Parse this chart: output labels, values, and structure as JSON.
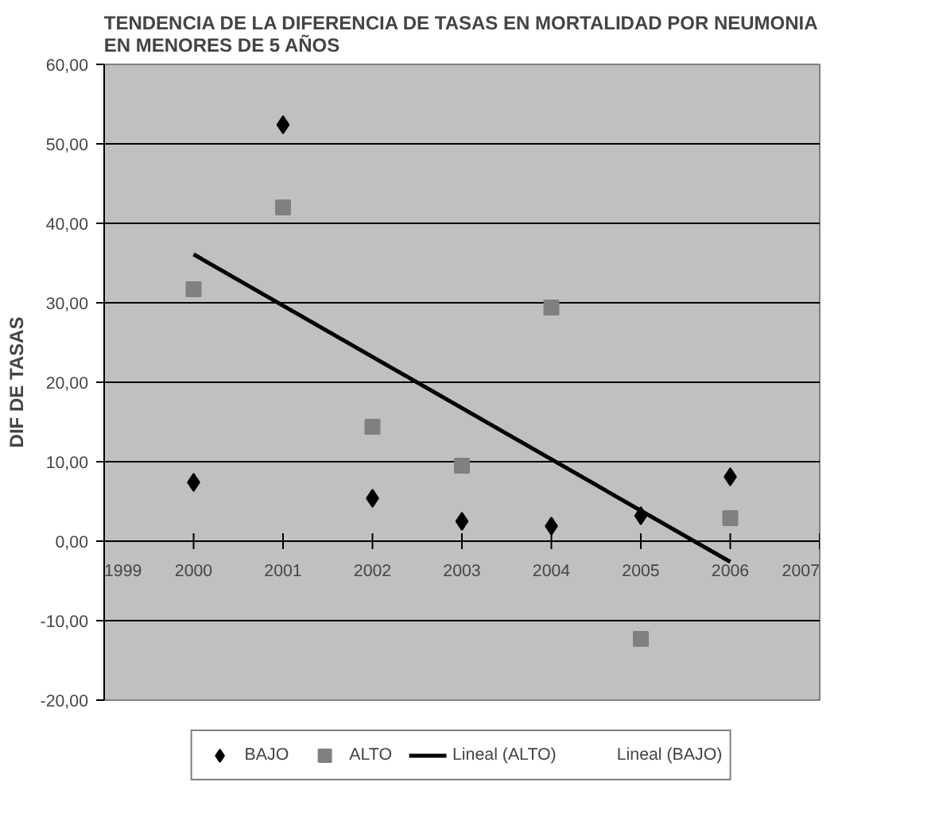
{
  "chart_data": {
    "type": "scatter",
    "title": "TENDENCIA DE LA DIFERENCIA DE TASAS EN MORTALIDAD POR NEUMONIA\nEN MENORES DE 5 AÑOS",
    "ylabel": "DIF DE TASAS",
    "x": [
      2000,
      2001,
      2002,
      2003,
      2004,
      2005,
      2006
    ],
    "series": [
      {
        "name": "BAJO",
        "color": "#000000",
        "marker": "diamond",
        "values": [
          7.4,
          52.4,
          5.4,
          2.5,
          1.9,
          3.2,
          8.1
        ]
      },
      {
        "name": "ALTO",
        "color": "#808080",
        "marker": "square",
        "values": [
          31.7,
          42.0,
          14.4,
          9.5,
          29.4,
          -12.3,
          2.9
        ]
      },
      {
        "name": "Lineal (ALTO)",
        "type": "line",
        "color": "#000000",
        "x": [
          2000,
          2006
        ],
        "values": [
          36.1,
          -2.6
        ]
      },
      {
        "name": "Lineal (BAJO)",
        "type": "line",
        "values": [
          null,
          null,
          null,
          null,
          null,
          null,
          null
        ]
      }
    ],
    "xlim": [
      1999,
      2007
    ],
    "xticks": [
      1999,
      2000,
      2001,
      2002,
      2003,
      2004,
      2005,
      2006,
      2007
    ],
    "ylim": [
      -20,
      60
    ],
    "yticks": [
      {
        "value": -20,
        "label": "-20,00"
      },
      {
        "value": -10,
        "label": "-10,00"
      },
      {
        "value": 0,
        "label": "0,00"
      },
      {
        "value": 10,
        "label": "10,00"
      },
      {
        "value": 20,
        "label": "20,00"
      },
      {
        "value": 30,
        "label": "30,00"
      },
      {
        "value": 40,
        "label": "40,00"
      },
      {
        "value": 50,
        "label": "50,00"
      },
      {
        "value": 60,
        "label": "60,00"
      }
    ],
    "grid": "y",
    "legend": "bottom"
  }
}
